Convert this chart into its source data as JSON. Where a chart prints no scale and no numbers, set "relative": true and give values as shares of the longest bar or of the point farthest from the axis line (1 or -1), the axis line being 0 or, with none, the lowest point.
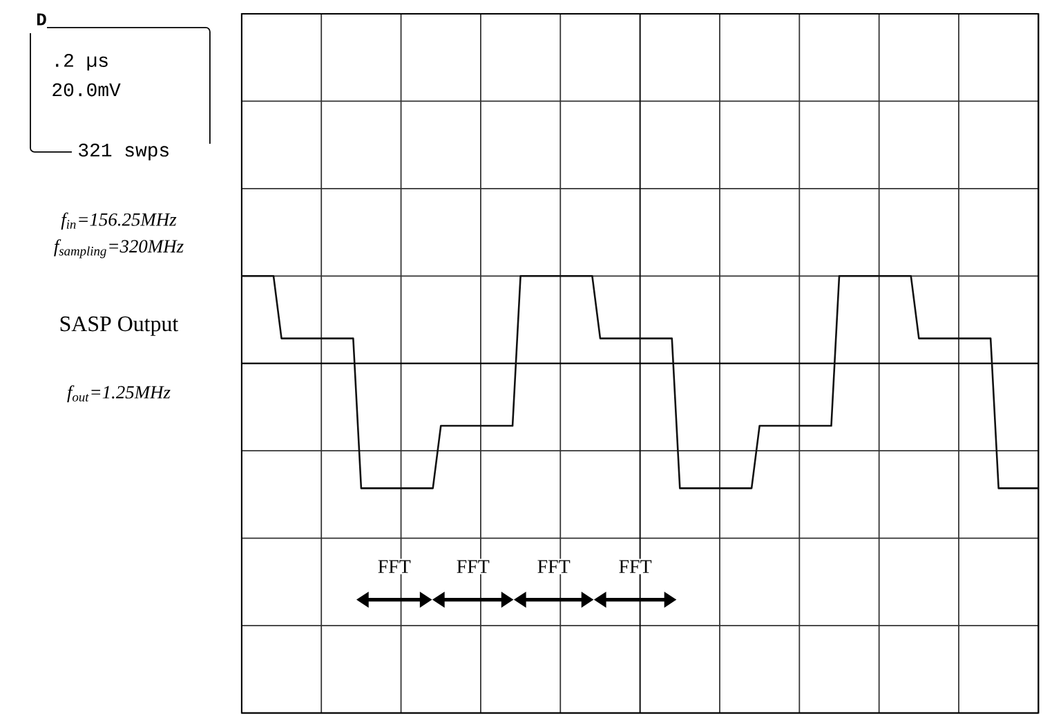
{
  "chart_data": {
    "type": "line",
    "relative": true,
    "grid": true,
    "color": "#111111",
    "categories": [
      null,
      null,
      null,
      null,
      null,
      null,
      null,
      null,
      null,
      null,
      null,
      null,
      null,
      null,
      null,
      null,
      null,
      null,
      null,
      null,
      null,
      null,
      null,
      null,
      null,
      null,
      null,
      null,
      null,
      null,
      null,
      null,
      null,
      null,
      null,
      null,
      null,
      null,
      null,
      null,
      null,
      null,
      null,
      null,
      null,
      null,
      null,
      null,
      null,
      null,
      null,
      null,
      null,
      null,
      null,
      null,
      null,
      null,
      null,
      null,
      null,
      null,
      null,
      null,
      null,
      null,
      null,
      null,
      null,
      null,
      null,
      null,
      null,
      null,
      null,
      null,
      null,
      null,
      null,
      null,
      null,
      null,
      null,
      null,
      null,
      null,
      null,
      null,
      null,
      null,
      null,
      null,
      null,
      null,
      null,
      null,
      null,
      null,
      null,
      null,
      null
    ],
    "values": [
      0.7,
      0.7,
      0.7,
      0.7,
      0.7,
      0.2,
      0.2,
      0.2,
      0.2,
      0.2,
      0.2,
      0.2,
      0.2,
      0.2,
      0.2,
      -1,
      -1,
      -1,
      -1,
      -1,
      -1,
      -1,
      -1,
      -1,
      -1,
      -0.5,
      -0.5,
      -0.5,
      -0.5,
      -0.5,
      -0.5,
      -0.5,
      -0.5,
      -0.5,
      -0.5,
      0.7,
      0.7,
      0.7,
      0.7,
      0.7,
      0.7,
      0.7,
      0.7,
      0.7,
      0.7,
      0.2,
      0.2,
      0.2,
      0.2,
      0.2,
      0.2,
      0.2,
      0.2,
      0.2,
      0.2,
      -1,
      -1,
      -1,
      -1,
      -1,
      -1,
      -1,
      -1,
      -1,
      -1,
      -0.5,
      -0.5,
      -0.5,
      -0.5,
      -0.5,
      -0.5,
      -0.5,
      -0.5,
      -0.5,
      -0.5,
      0.7,
      0.7,
      0.7,
      0.7,
      0.7,
      0.7,
      0.7,
      0.7,
      0.7,
      0.7,
      0.2,
      0.2,
      0.2,
      0.2,
      0.2,
      0.2,
      0.2,
      0.2,
      0.2,
      0.2,
      -1,
      -1,
      -1,
      -1,
      -1,
      -1
    ],
    "annotations": [
      "D",
      ".2 µs",
      "20.0mV",
      "321 swps",
      "f$_{in}$=156.25MHz",
      "f$_{sampling}$=320MHz",
      "SASP Output",
      "f$_{out}$=1.25MHz",
      "FFT",
      "FFT",
      "FFT",
      "FFT"
    ]
  }
}
